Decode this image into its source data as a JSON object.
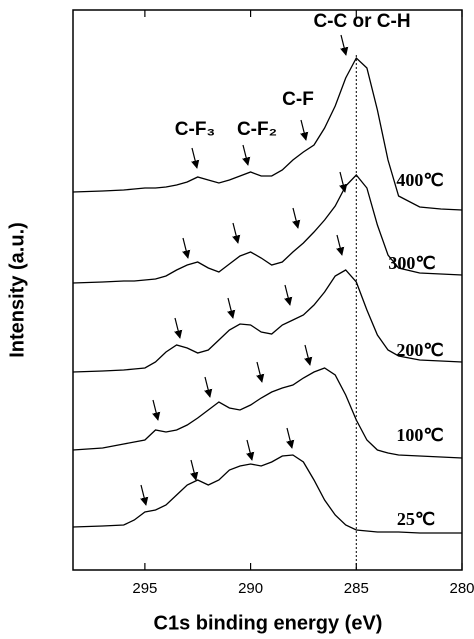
{
  "chart_data": {
    "type": "line",
    "x_label": "C1s binding energy (eV)",
    "y_label": "Intensity (a.u.)",
    "x": [
      298.4,
      297,
      296,
      295.5,
      295,
      294.5,
      294,
      293.5,
      293,
      292.5,
      292,
      291.5,
      291,
      290.5,
      290,
      289.5,
      289,
      288.5,
      288,
      287.5,
      287,
      286.5,
      286,
      285.5,
      285,
      284.5,
      284,
      283.5,
      283,
      282,
      281,
      280
    ],
    "series": [
      {
        "name": "400℃",
        "color": "#000000",
        "values": [
          378,
          379,
          380,
          381,
          382,
          382,
          383,
          385,
          388,
          393,
          390,
          387,
          390,
          394,
          398,
          394,
          394,
          400,
          410,
          418,
          425,
          442,
          464,
          492,
          512,
          502,
          460,
          410,
          374,
          363,
          361,
          360
        ]
      },
      {
        "name": "300℃",
        "color": "#000000",
        "values": [
          287,
          288,
          289,
          289,
          290,
          291,
          294,
          300,
          305,
          308,
          302,
          298,
          306,
          314,
          318,
          312,
          305,
          308,
          318,
          327,
          338,
          350,
          364,
          384,
          395,
          382,
          345,
          315,
          302,
          297,
          296,
          295
        ]
      },
      {
        "name": "200℃",
        "color": "#000000",
        "values": [
          198,
          199,
          200,
          201,
          202,
          208,
          218,
          225,
          222,
          217,
          220,
          230,
          240,
          246,
          245,
          238,
          236,
          245,
          250,
          255,
          265,
          278,
          294,
          300,
          288,
          260,
          235,
          220,
          214,
          210,
          209,
          208
        ]
      },
      {
        "name": "100℃",
        "color": "#000000",
        "values": [
          120,
          122,
          126,
          128,
          130,
          140,
          138,
          140,
          145,
          152,
          160,
          168,
          162,
          160,
          165,
          172,
          178,
          182,
          185,
          192,
          198,
          202,
          195,
          175,
          150,
          130,
          120,
          117,
          115,
          114,
          113,
          112
        ]
      },
      {
        "name": "25℃",
        "color": "#000000",
        "values": [
          43,
          44,
          45,
          50,
          58,
          60,
          65,
          75,
          85,
          90,
          85,
          90,
          100,
          104,
          106,
          104,
          108,
          114,
          115,
          108,
          90,
          70,
          55,
          45,
          40,
          39,
          38,
          38,
          38,
          37,
          37,
          37
        ]
      }
    ],
    "xlim": [
      298.4,
      280
    ],
    "xticks": [
      295,
      290,
      285,
      280
    ],
    "ylim": [
      0,
      560
    ],
    "reference_line_x": 285,
    "annotations": [
      "C-C or C-H",
      "C-F",
      "C-F₃",
      "C-F₂"
    ]
  }
}
